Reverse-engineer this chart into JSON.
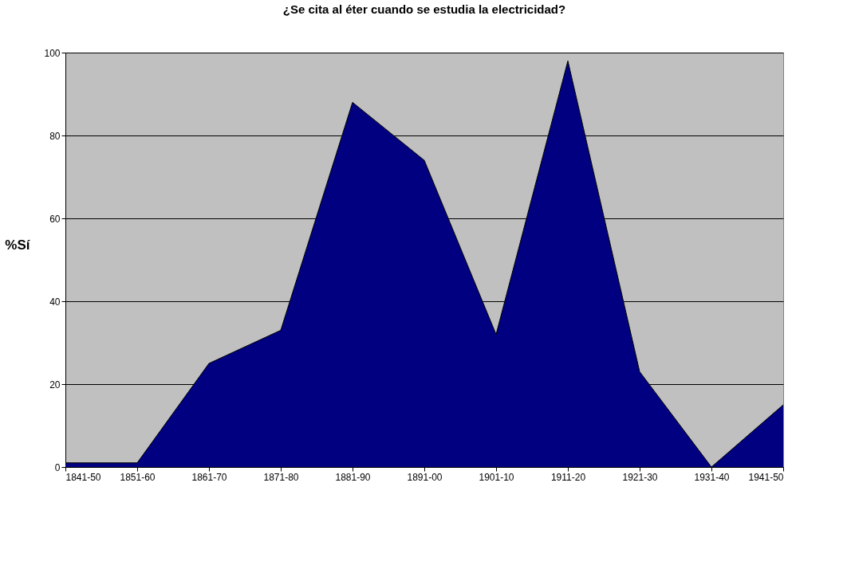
{
  "chart_data": {
    "type": "area",
    "title": "¿Se cita al éter cuando se estudia la electricidad?",
    "ylabel": "%Sí",
    "categories": [
      "1841-50",
      "1851-60",
      "1861-70",
      "1871-80",
      "1881-90",
      "1891-00",
      "1901-10",
      "1911-20",
      "1921-30",
      "1931-40",
      "1941-50"
    ],
    "series": [
      {
        "color": "#000080",
        "values": [
          1,
          1,
          25,
          33,
          88,
          74,
          32,
          98,
          23,
          0,
          15
        ]
      }
    ],
    "ylim": [
      0,
      100
    ],
    "yticks": [
      0,
      20,
      40,
      60,
      80,
      100
    ],
    "grid": "y"
  }
}
